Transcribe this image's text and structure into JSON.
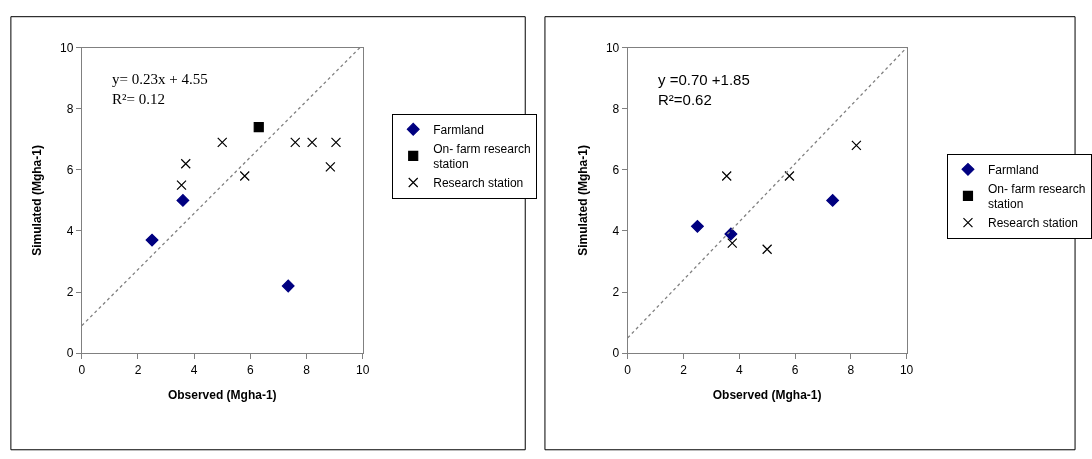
{
  "chart_data": [
    {
      "type": "scatter",
      "xlabel": "Observed (Mgha-1)",
      "ylabel": "Simulated (Mgha-1)",
      "annotations": [
        "y= 0.23x + 4.55\nR²= 0.12"
      ],
      "xlim": [
        0,
        10
      ],
      "ylim": [
        0,
        10
      ],
      "xticks": [
        0,
        2,
        4,
        6,
        8,
        10
      ],
      "yticks": [
        0,
        2,
        4,
        6,
        8,
        10
      ],
      "legend": "right",
      "series": [
        {
          "name": "Farmland",
          "color": "#000080",
          "marker": "diamond",
          "x": [
            2.5,
            3.6,
            7.35
          ],
          "values": [
            3.7,
            5.0,
            2.2
          ]
        },
        {
          "name": "On- farm research station",
          "color": "#000000",
          "marker": "square",
          "x": [
            6.3
          ],
          "values": [
            7.4
          ]
        },
        {
          "name": "Research station",
          "color": "#000000",
          "marker": "cross",
          "x": [
            3.55,
            3.7,
            5.0,
            5.8,
            7.6,
            8.2,
            8.85,
            9.05
          ],
          "values": [
            5.5,
            6.2,
            6.9,
            5.8,
            6.9,
            6.9,
            6.1,
            6.9
          ]
        },
        {
          "type": "line",
          "color": "#808080",
          "line_style": "dotted",
          "marker": "none",
          "x": [
            0,
            9.9
          ],
          "values": [
            0.9,
            10
          ]
        }
      ]
    },
    {
      "type": "scatter",
      "xlabel": "Observed (Mgha-1)",
      "ylabel": "Simulated (Mgha-1)",
      "annotations": [
        "y =0.70 +1.85\nR²=0.62"
      ],
      "xlim": [
        0,
        10
      ],
      "ylim": [
        0,
        10
      ],
      "xticks": [
        0,
        2,
        4,
        6,
        8,
        10
      ],
      "yticks": [
        0,
        2,
        4,
        6,
        8,
        10
      ],
      "legend": "right",
      "series": [
        {
          "name": "Farmland",
          "color": "#000080",
          "marker": "diamond",
          "x": [
            2.5,
            3.7,
            7.35
          ],
          "values": [
            4.15,
            3.9,
            5.0
          ]
        },
        {
          "name": "On- farm research station",
          "color": "#000000",
          "marker": "square"
        },
        {
          "name": "Research station",
          "color": "#000000",
          "marker": "cross",
          "x": [
            3.55,
            3.75,
            5.0,
            5.8,
            8.2
          ],
          "values": [
            5.8,
            3.6,
            3.4,
            5.8,
            6.8
          ]
        },
        {
          "type": "line",
          "color": "#808080",
          "line_style": "dotted",
          "marker": "none",
          "x": [
            0,
            10
          ],
          "values": [
            0.5,
            10
          ]
        }
      ]
    }
  ]
}
